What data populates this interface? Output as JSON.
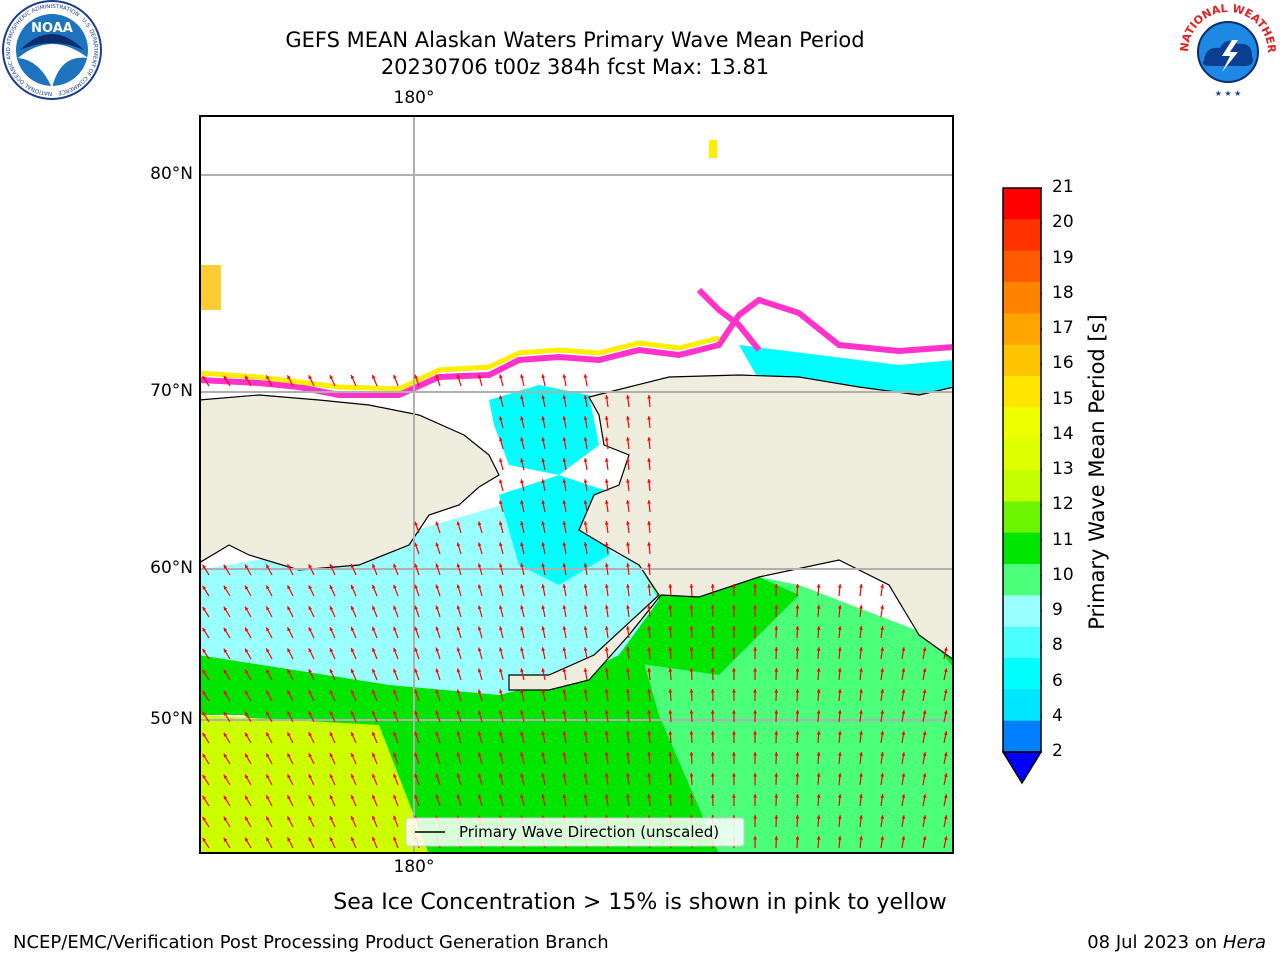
{
  "title": {
    "line1": "GEFS MEAN Alaskan Waters Primary Wave Mean Period",
    "line2": "20230706 t00z 384h fcst   Max: 13.81"
  },
  "map": {
    "lat_labels": [
      "80°N",
      "70°N",
      "60°N",
      "50°N"
    ],
    "lon_label_top": "180°",
    "lon_label_bottom": "180°",
    "legend_label": "Primary Wave Direction (unscaled)",
    "colors": {
      "land": "#efedde",
      "ocean_light": "#99ffff",
      "ocean_cyan": "#00ffff",
      "ocean_green": "#00e600",
      "ocean_lightgreen": "#4cff7a",
      "ocean_yellowgreen": "#ccff00",
      "arrow": "#ff0000",
      "grid": "#b0b0b0"
    }
  },
  "colorbar": {
    "label": "Primary Wave Mean Period [s]",
    "ticks": [
      "21",
      "20",
      "19",
      "18",
      "17",
      "16",
      "15",
      "14",
      "13",
      "12",
      "11",
      "10",
      "9",
      "8",
      "6",
      "4",
      "2"
    ],
    "colors": [
      "#ff0000",
      "#ff3300",
      "#ff5a00",
      "#ff8200",
      "#ffa400",
      "#ffc400",
      "#ffe600",
      "#f0ff00",
      "#ddff00",
      "#c4ff00",
      "#6cf500",
      "#00e600",
      "#4cff7a",
      "#99ffff",
      "#4cffff",
      "#00ffff",
      "#00e6ff",
      "#0080ff"
    ]
  },
  "logos": {
    "noaa_text": "NOAA",
    "noaa_ring": "NATIONAL OCEANIC AND ATMOSPHERIC ADMINISTRATION · U.S. DEPARTMENT OF COMMERCE",
    "nws_ring": "NATIONAL WEATHER SERVICE"
  },
  "footer": {
    "ice_note": "Sea Ice Concentration > 15% is shown in pink to yellow",
    "left": "NCEP/EMC/Verification Post Processing Product Generation Branch",
    "date": "08 Jul 2023 on",
    "machine": "Hera"
  }
}
